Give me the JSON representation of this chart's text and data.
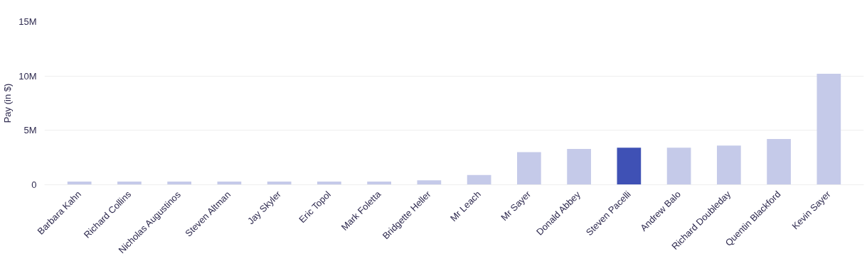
{
  "chart_data": {
    "type": "bar",
    "ylabel": "Pay (in $)",
    "categories": [
      "Barbara Kahn",
      "Richard Collins",
      "Nicholas Augustinos",
      "Steven Altman",
      "Jay Skyler",
      "Eric Topol",
      "Mark Foletta",
      "Bridgette Heller",
      "Mr Leach",
      "Mr Sayer",
      "Donald Abbey",
      "Steven Pacelli",
      "Andrew Balo",
      "Richard Doubleday",
      "Quentin Blackford",
      "Kevin Sayer"
    ],
    "values": [
      300000,
      300000,
      300000,
      300000,
      300000,
      300000,
      300000,
      400000,
      900000,
      3000000,
      3300000,
      3400000,
      3400000,
      3600000,
      4200000,
      10200000
    ],
    "colors": [
      "#c5cae9",
      "#c5cae9",
      "#c5cae9",
      "#c5cae9",
      "#c5cae9",
      "#c5cae9",
      "#c5cae9",
      "#c5cae9",
      "#c5cae9",
      "#c5cae9",
      "#c5cae9",
      "#3f51b5",
      "#c5cae9",
      "#c5cae9",
      "#c5cae9",
      "#c5cae9"
    ],
    "ylim": [
      0,
      15000000
    ],
    "yticks": [
      {
        "value": 0,
        "label": "0"
      },
      {
        "value": 5000000,
        "label": "5M"
      },
      {
        "value": 10000000,
        "label": "10M"
      },
      {
        "value": 15000000,
        "label": "15M"
      }
    ],
    "grid": "y"
  }
}
